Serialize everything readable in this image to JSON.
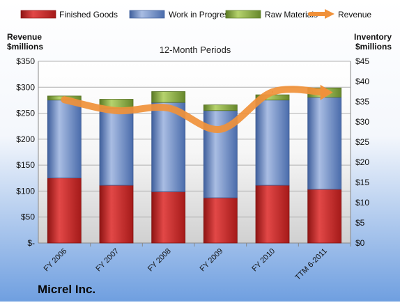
{
  "chart_data": {
    "type": "bar",
    "title": "12-Month Periods",
    "company": "Micrel Inc.",
    "y_left_label": [
      "Revenue",
      "$millions"
    ],
    "y_right_label": [
      "Inventory",
      "$millions"
    ],
    "categories": [
      "FY 2006",
      "FY 2007",
      "FY 2008",
      "FY 2009",
      "FY 2010",
      "TTM 6-2011"
    ],
    "y_left_ticks": [
      "$-",
      "$50",
      "$100",
      "$150",
      "$200",
      "$250",
      "$300",
      "$350"
    ],
    "y_left_lim": [
      0,
      350
    ],
    "y_right_ticks": [
      "$0",
      "$5",
      "$10",
      "$15",
      "$20",
      "$25",
      "$30",
      "$35",
      "$40",
      "$45"
    ],
    "y_right_lim": [
      0,
      45
    ],
    "legend_position": "top",
    "series": [
      {
        "name": "Finished Goods",
        "axis": "right",
        "stack": true,
        "color": "#c0201f",
        "values": [
          16.1,
          14.3,
          12.7,
          11.2,
          14.3,
          13.3
        ]
      },
      {
        "name": "Work in Progress",
        "axis": "right",
        "stack": true,
        "color": "#5b7fbf",
        "values": [
          19.3,
          19.1,
          22.1,
          21.6,
          21.1,
          22.8
        ]
      },
      {
        "name": "Raw Materials",
        "axis": "right",
        "stack": true,
        "color": "#7fa33a",
        "values": [
          1.0,
          2.2,
          2.7,
          1.4,
          1.3,
          2.3
        ]
      },
      {
        "name": "Revenue",
        "axis": "left",
        "type": "line",
        "color": "#f0913a",
        "values": [
          276,
          255,
          260,
          219,
          291,
          290
        ]
      }
    ]
  }
}
